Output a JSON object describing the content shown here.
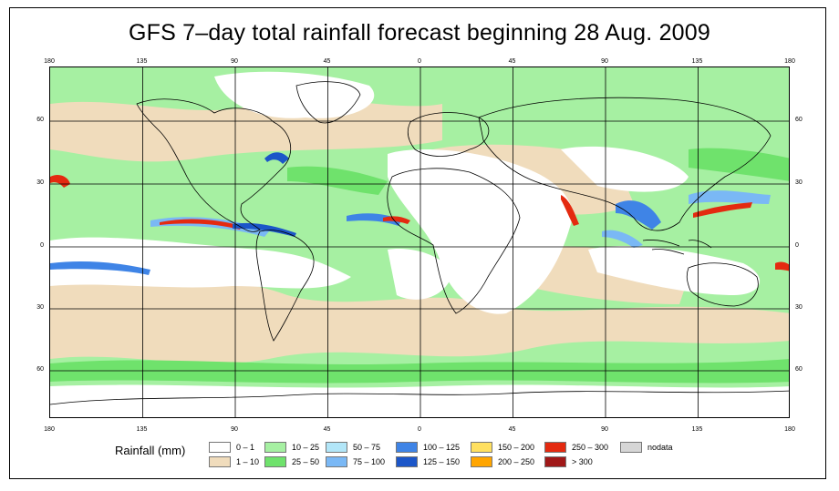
{
  "title": "GFS 7–day total rainfall forecast beginning 28 Aug. 2009",
  "longitude_ticks": [
    "180",
    "135",
    "90",
    "45",
    "0",
    "45",
    "90",
    "135",
    "180"
  ],
  "latitude_ticks": [
    "60",
    "30",
    "0",
    "30",
    "60"
  ],
  "legend": {
    "title": "Rainfall (mm)",
    "items": [
      {
        "label": "0 – 1",
        "color": "#ffffff"
      },
      {
        "label": "1 – 10",
        "color": "#f0dcbc"
      },
      {
        "label": "10 – 25",
        "color": "#a6f0a2"
      },
      {
        "label": "25 – 50",
        "color": "#6fe26c"
      },
      {
        "label": "50 – 75",
        "color": "#b2e6f8"
      },
      {
        "label": "75 – 100",
        "color": "#7ab8f5"
      },
      {
        "label": "100 – 125",
        "color": "#3f84e6"
      },
      {
        "label": "125 – 150",
        "color": "#1c56c8"
      },
      {
        "label": "150 – 200",
        "color": "#ffe060"
      },
      {
        "label": "200 – 250",
        "color": "#ffa500"
      },
      {
        "label": "250 – 300",
        "color": "#e42a10"
      },
      {
        "label": "> 300",
        "color": "#a01818"
      },
      {
        "label": "nodata",
        "color": "#d6d6d6"
      }
    ]
  }
}
